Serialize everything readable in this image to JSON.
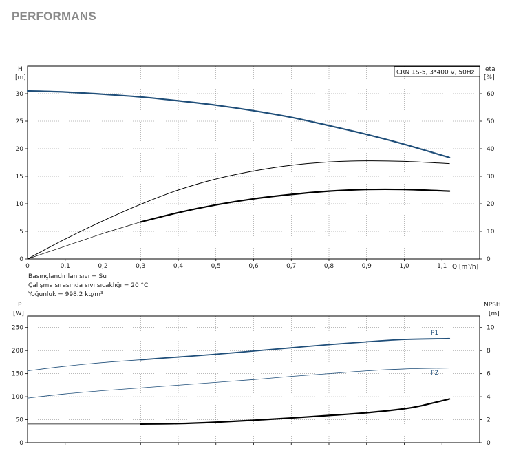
{
  "page": {
    "title": "PERFORMANS"
  },
  "colors": {
    "blue": "#1f4e79",
    "black": "#000000",
    "axis": "#000000",
    "grid": "#777777"
  },
  "chart_data": [
    {
      "type": "line",
      "name": "head-efficiency",
      "model_label": "CRN 1S-5, 3*400 V, 50Hz",
      "xlabel": "Q [m³/h]",
      "ylabel_left": [
        "H",
        "[m]"
      ],
      "ylabel_right": [
        "eta",
        "[%]"
      ],
      "xlim": [
        0,
        1.2
      ],
      "ylim_left": [
        0,
        35
      ],
      "ylim_right": [
        0,
        70
      ],
      "x_ticks": [
        "0",
        "0,1",
        "0,2",
        "0,3",
        "0,4",
        "0,5",
        "0,6",
        "0,7",
        "0,8",
        "0,9",
        "1,0",
        "1,1"
      ],
      "y_ticks_left": [
        "0",
        "5",
        "10",
        "15",
        "20",
        "25",
        "30"
      ],
      "y_ticks_right": [
        "0",
        "10",
        "20",
        "30",
        "40",
        "50",
        "60"
      ],
      "grid": true,
      "notes": [
        "Basınçlandırılan sıvı = Su",
        "Çalışma sırasında sıvı sıcaklığı = 20 °C",
        "Yoğunluk = 998.2 kg/m³"
      ],
      "series": [
        {
          "axis": "left",
          "color": "blue",
          "width": 2.2,
          "x": [
            0,
            0.1,
            0.2,
            0.3,
            0.4,
            0.5,
            0.6,
            0.7,
            0.8,
            0.9,
            1.0,
            1.12
          ],
          "y": [
            30.5,
            30.3,
            29.9,
            29.4,
            28.7,
            27.9,
            26.9,
            25.7,
            24.2,
            22.6,
            20.8,
            18.4
          ]
        },
        {
          "axis": "right",
          "color": "black",
          "width": 1.0,
          "x": [
            0,
            0.1,
            0.2,
            0.3,
            0.4,
            0.5,
            0.6,
            0.7,
            0.8,
            0.9,
            1.0,
            1.12
          ],
          "y": [
            0,
            7.2,
            13.8,
            19.8,
            25.0,
            29.0,
            31.9,
            34.0,
            35.2,
            35.6,
            35.4,
            34.6
          ]
        },
        {
          "axis": "left",
          "color": "black",
          "width": 0.7,
          "x": [
            0,
            0.1,
            0.2,
            0.3
          ],
          "y": [
            0,
            2.3,
            4.6,
            6.7
          ]
        },
        {
          "axis": "left",
          "color": "black",
          "width": 2.2,
          "x": [
            0.3,
            0.4,
            0.5,
            0.6,
            0.7,
            0.8,
            0.9,
            1.0,
            1.12
          ],
          "y": [
            6.7,
            8.4,
            9.8,
            10.9,
            11.7,
            12.3,
            12.6,
            12.6,
            12.3
          ]
        }
      ]
    },
    {
      "type": "line",
      "name": "power-npsh",
      "ylabel_left": [
        "P",
        "[W]"
      ],
      "ylabel_right": [
        "NPSH",
        "[m]"
      ],
      "xlim": [
        0,
        1.2
      ],
      "ylim_left": [
        0,
        275
      ],
      "ylim_right": [
        0,
        11
      ],
      "y_ticks_left": [
        "0",
        "50",
        "100",
        "150",
        "200",
        "250"
      ],
      "y_ticks_right": [
        "0",
        "2",
        "4",
        "6",
        "8",
        "10"
      ],
      "grid": true,
      "series": [
        {
          "name": "P1",
          "axis": "left",
          "color": "blue",
          "width": 0.8,
          "x": [
            0,
            0.1,
            0.2,
            0.3
          ],
          "y": [
            156,
            166,
            174,
            180
          ]
        },
        {
          "name": "P1",
          "axis": "left",
          "color": "blue",
          "width": 1.8,
          "x": [
            0.3,
            0.4,
            0.5,
            0.6,
            0.7,
            0.8,
            0.9,
            1.0,
            1.12
          ],
          "y": [
            180,
            186,
            192,
            199,
            206,
            213,
            219,
            224,
            226
          ]
        },
        {
          "name": "P2",
          "axis": "left",
          "color": "blue",
          "width": 0.8,
          "x": [
            0,
            0.1,
            0.2,
            0.3,
            0.4,
            0.5,
            0.6,
            0.7,
            0.8,
            0.9,
            1.0,
            1.12
          ],
          "y": [
            97,
            106,
            113,
            119,
            125,
            131,
            137,
            144,
            150,
            156,
            160,
            162
          ]
        },
        {
          "axis": "right",
          "color": "black",
          "width": 0.7,
          "x": [
            0,
            0.3
          ],
          "y": [
            1.62,
            1.62
          ]
        },
        {
          "axis": "right",
          "color": "black",
          "width": 2.2,
          "x": [
            0.3,
            0.4,
            0.5,
            0.6,
            0.7,
            0.8,
            0.9,
            1.0,
            1.05,
            1.12
          ],
          "y": [
            1.62,
            1.66,
            1.78,
            1.95,
            2.15,
            2.37,
            2.6,
            2.95,
            3.25,
            3.8
          ]
        }
      ]
    }
  ]
}
